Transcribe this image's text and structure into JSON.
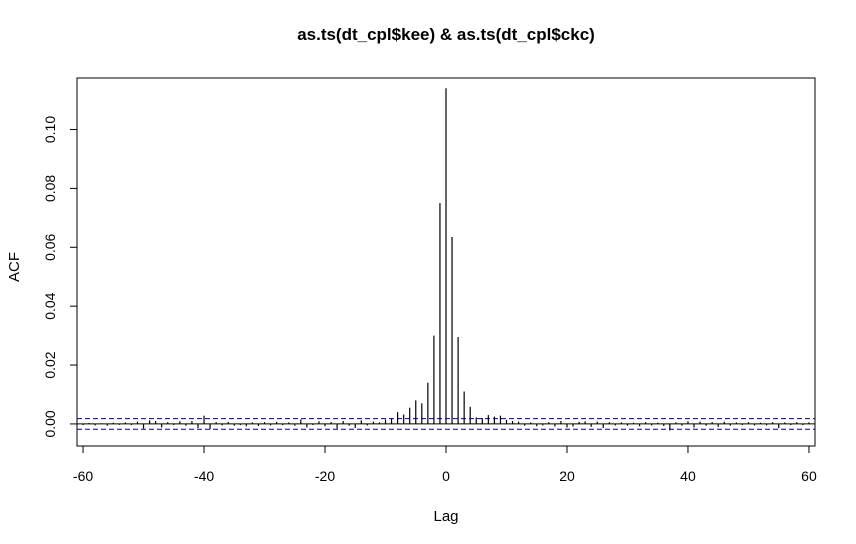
{
  "chart_data": {
    "type": "bar",
    "title": "as.ts(dt_cpl$kee) & as.ts(dt_cpl$ckc)",
    "xlabel": "Lag",
    "ylabel": "ACF",
    "xlim": [
      -61,
      61
    ],
    "ylim": [
      -0.0075,
      0.1175
    ],
    "x_ticks": [
      -60,
      -40,
      -20,
      0,
      20,
      40,
      60
    ],
    "y_ticks": [
      0.0,
      0.02,
      0.04,
      0.06,
      0.08,
      0.1
    ],
    "y_tick_labels": [
      "0.00",
      "0.02",
      "0.04",
      "0.06",
      "0.08",
      "0.10"
    ],
    "x_tick_labels": [
      "-60",
      "-40",
      "-20",
      "0",
      "20",
      "40",
      "60"
    ],
    "confidence_bound": 0.0018,
    "lags": [
      -60,
      -59,
      -58,
      -57,
      -56,
      -55,
      -54,
      -53,
      -52,
      -51,
      -50,
      -49,
      -48,
      -47,
      -46,
      -45,
      -44,
      -43,
      -42,
      -41,
      -40,
      -39,
      -38,
      -37,
      -36,
      -35,
      -34,
      -33,
      -32,
      -31,
      -30,
      -29,
      -28,
      -27,
      -26,
      -25,
      -24,
      -23,
      -22,
      -21,
      -20,
      -19,
      -18,
      -17,
      -16,
      -15,
      -14,
      -13,
      -12,
      -11,
      -10,
      -9,
      -8,
      -7,
      -6,
      -5,
      -4,
      -3,
      -2,
      -1,
      0,
      1,
      2,
      3,
      4,
      5,
      6,
      7,
      8,
      9,
      10,
      11,
      12,
      13,
      14,
      15,
      16,
      17,
      18,
      19,
      20,
      21,
      22,
      23,
      24,
      25,
      26,
      27,
      28,
      29,
      30,
      31,
      32,
      33,
      34,
      35,
      36,
      37,
      38,
      39,
      40,
      41,
      42,
      43,
      44,
      45,
      46,
      47,
      48,
      49,
      50,
      51,
      52,
      53,
      54,
      55,
      56,
      57,
      58,
      59,
      60
    ],
    "values": [
      -0.0004,
      0.0003,
      -0.0005,
      0.0002,
      -0.0006,
      0.0004,
      -0.0003,
      0.0005,
      -0.0004,
      0.0008,
      -0.0016,
      0.0012,
      0.001,
      -0.0012,
      0.0006,
      -0.0004,
      0.0009,
      -0.0006,
      0.001,
      -0.0014,
      0.0028,
      -0.0018,
      0.0006,
      -0.0005,
      0.0007,
      -0.0006,
      -0.0004,
      -0.0008,
      0.0005,
      -0.0007,
      0.0006,
      -0.0005,
      0.0007,
      -0.0004,
      0.0005,
      -0.0006,
      0.0015,
      -0.0012,
      -0.0004,
      0.0009,
      -0.0008,
      0.0006,
      -0.0016,
      0.001,
      -0.0006,
      -0.0014,
      0.0012,
      -0.0005,
      0.0008,
      0.0005,
      0.0015,
      0.0018,
      0.004,
      0.0032,
      0.0055,
      0.008,
      0.007,
      0.014,
      0.03,
      0.075,
      0.114,
      0.0635,
      0.0295,
      0.011,
      0.0058,
      0.0022,
      0.002,
      0.003,
      0.0025,
      0.0028,
      0.0014,
      0.001,
      0.0008,
      -0.0006,
      0.0005,
      -0.0008,
      -0.0005,
      0.0006,
      -0.0009,
      0.001,
      -0.0012,
      -0.0009,
      0.0007,
      0.0009,
      -0.001,
      0.0008,
      -0.0014,
      0.0006,
      -0.0005,
      0.0005,
      -0.0006,
      0.0004,
      -0.0008,
      0.0006,
      -0.0005,
      0.0004,
      -0.0007,
      -0.0022,
      0.0005,
      -0.0006,
      0.0009,
      -0.0012,
      0.0008,
      -0.0006,
      0.0006,
      -0.001,
      0.0008,
      -0.0006,
      0.0005,
      -0.0004,
      0.0006,
      -0.0005,
      0.0004,
      -0.0005,
      0.0006,
      -0.0014,
      0.0005,
      -0.0004,
      0.0006,
      -0.0004,
      0.0005
    ],
    "colors": {
      "bars": "#000000",
      "zero_line": "#000000",
      "bound": "#00008b",
      "frame": "#000000"
    },
    "grid": false,
    "legend": "none"
  }
}
